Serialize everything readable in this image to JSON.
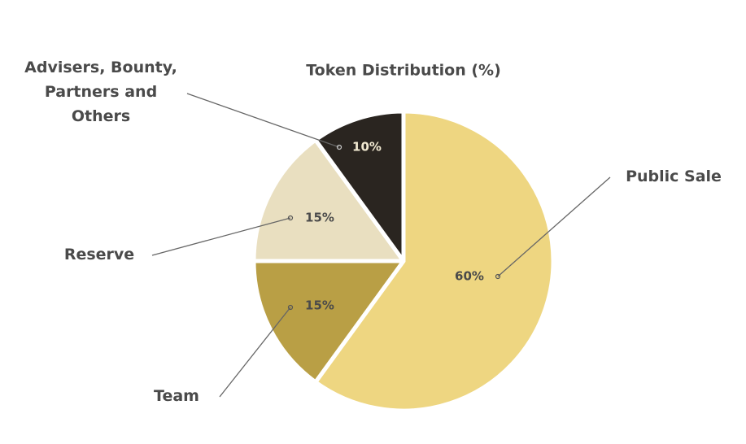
{
  "chart_data": {
    "type": "pie",
    "title": "Token Distribution (%)",
    "categories": [
      "Public Sale",
      "Team",
      "Reserve",
      "Advisers, Bounty, Partners and Others"
    ],
    "values": [
      60,
      15,
      15,
      10
    ],
    "value_labels": [
      "60%",
      "15%",
      "15%",
      "10%"
    ],
    "colors": [
      "#eed681",
      "#b99f45",
      "#e9dfc0",
      "#2a2520"
    ]
  }
}
